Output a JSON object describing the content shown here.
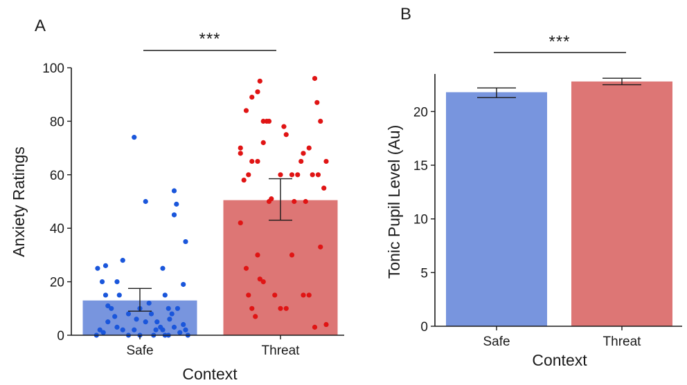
{
  "chart_data": [
    {
      "panel": "A",
      "type": "bar",
      "categories": [
        "Safe",
        "Threat"
      ],
      "values": [
        13,
        50.5
      ],
      "error_low": [
        9,
        43
      ],
      "error_high": [
        17.5,
        58.5
      ],
      "colors": [
        "#7895de",
        "#dd7675"
      ],
      "point_colors": [
        "#1a56db",
        "#e01414"
      ],
      "xlabel": "Context",
      "ylabel": "Anxiety Ratings",
      "ylim": [
        0,
        100
      ],
      "yticks": [
        "0",
        "20",
        "40",
        "60",
        "80",
        "100"
      ],
      "significance": "***",
      "points": [
        [
          [
            -0.37,
            25
          ],
          [
            -0.3,
            26
          ],
          [
            -0.33,
            20
          ],
          [
            -0.3,
            15
          ],
          [
            -0.15,
            28
          ],
          [
            -0.05,
            74
          ],
          [
            0.05,
            50
          ],
          [
            0.2,
            25
          ],
          [
            0.22,
            15
          ],
          [
            0.25,
            10
          ],
          [
            0.3,
            54
          ],
          [
            0.32,
            49
          ],
          [
            0.3,
            45
          ],
          [
            0.4,
            35
          ],
          [
            0.38,
            19
          ],
          [
            -0.2,
            20
          ],
          [
            -0.18,
            15
          ],
          [
            -0.25,
            10
          ],
          [
            -0.1,
            8
          ],
          [
            0.0,
            10
          ],
          [
            0.05,
            5
          ],
          [
            0.1,
            8
          ],
          [
            0.15,
            5
          ],
          [
            0.2,
            2
          ],
          [
            0.25,
            0
          ],
          [
            0.3,
            3
          ],
          [
            0.35,
            1
          ],
          [
            -0.05,
            2
          ],
          [
            -0.15,
            2
          ],
          [
            -0.28,
            5
          ],
          [
            -0.35,
            2
          ],
          [
            -0.38,
            0
          ],
          [
            -0.1,
            0
          ],
          [
            0.0,
            0
          ],
          [
            0.4,
            2
          ],
          [
            0.42,
            0
          ],
          [
            -0.22,
            7
          ],
          [
            0.12,
            0
          ],
          [
            0.18,
            3
          ],
          [
            0.28,
            8
          ],
          [
            -0.2,
            3
          ],
          [
            0.08,
            12
          ],
          [
            -0.28,
            11
          ],
          [
            0.33,
            10
          ],
          [
            0.14,
            2
          ],
          [
            -0.03,
            6
          ],
          [
            0.22,
            0
          ],
          [
            0.38,
            4
          ],
          [
            -0.32,
            1
          ],
          [
            0.26,
            6
          ]
        ],
        [
          [
            -0.35,
            70
          ],
          [
            -0.35,
            68
          ],
          [
            -0.3,
            84
          ],
          [
            -0.25,
            89
          ],
          [
            -0.2,
            91
          ],
          [
            -0.18,
            95
          ],
          [
            -0.15,
            80
          ],
          [
            -0.12,
            80
          ],
          [
            -0.1,
            80
          ],
          [
            -0.2,
            65
          ],
          [
            -0.15,
            72
          ],
          [
            -0.25,
            65
          ],
          [
            0.05,
            75
          ],
          [
            0.1,
            60
          ],
          [
            0.2,
            68
          ],
          [
            0.25,
            70
          ],
          [
            0.3,
            96
          ],
          [
            0.32,
            87
          ],
          [
            0.35,
            80
          ],
          [
            0.4,
            65
          ],
          [
            0.38,
            55
          ],
          [
            0.33,
            60
          ],
          [
            0.28,
            60
          ],
          [
            0.15,
            60
          ],
          [
            -0.35,
            42
          ],
          [
            -0.3,
            25
          ],
          [
            -0.28,
            15
          ],
          [
            -0.2,
            30
          ],
          [
            -0.15,
            20
          ],
          [
            -0.1,
            50
          ],
          [
            -0.05,
            15
          ],
          [
            0.0,
            10
          ],
          [
            0.05,
            10
          ],
          [
            0.1,
            30
          ],
          [
            0.2,
            15
          ],
          [
            0.25,
            15
          ],
          [
            0.35,
            33
          ],
          [
            0.4,
            4
          ],
          [
            0.3,
            3
          ],
          [
            -0.25,
            10
          ],
          [
            -0.22,
            7
          ],
          [
            -0.18,
            21
          ],
          [
            0.0,
            60
          ],
          [
            0.12,
            50
          ],
          [
            -0.08,
            51
          ],
          [
            0.22,
            50
          ],
          [
            -0.32,
            58
          ],
          [
            0.18,
            65
          ],
          [
            0.03,
            78
          ],
          [
            -0.28,
            60
          ]
        ]
      ]
    },
    {
      "panel": "B",
      "type": "bar",
      "categories": [
        "Safe",
        "Threat"
      ],
      "values": [
        21.8,
        22.8
      ],
      "error_low": [
        21.3,
        22.5
      ],
      "error_high": [
        22.2,
        23.1
      ],
      "colors": [
        "#7895de",
        "#dd7675"
      ],
      "xlabel": "Context",
      "ylabel": "Tonic Pupil Level (Au)",
      "ylim": [
        0,
        23.5
      ],
      "yticks": [
        "0",
        "5",
        "10",
        "15",
        "20"
      ],
      "significance": "***"
    }
  ]
}
